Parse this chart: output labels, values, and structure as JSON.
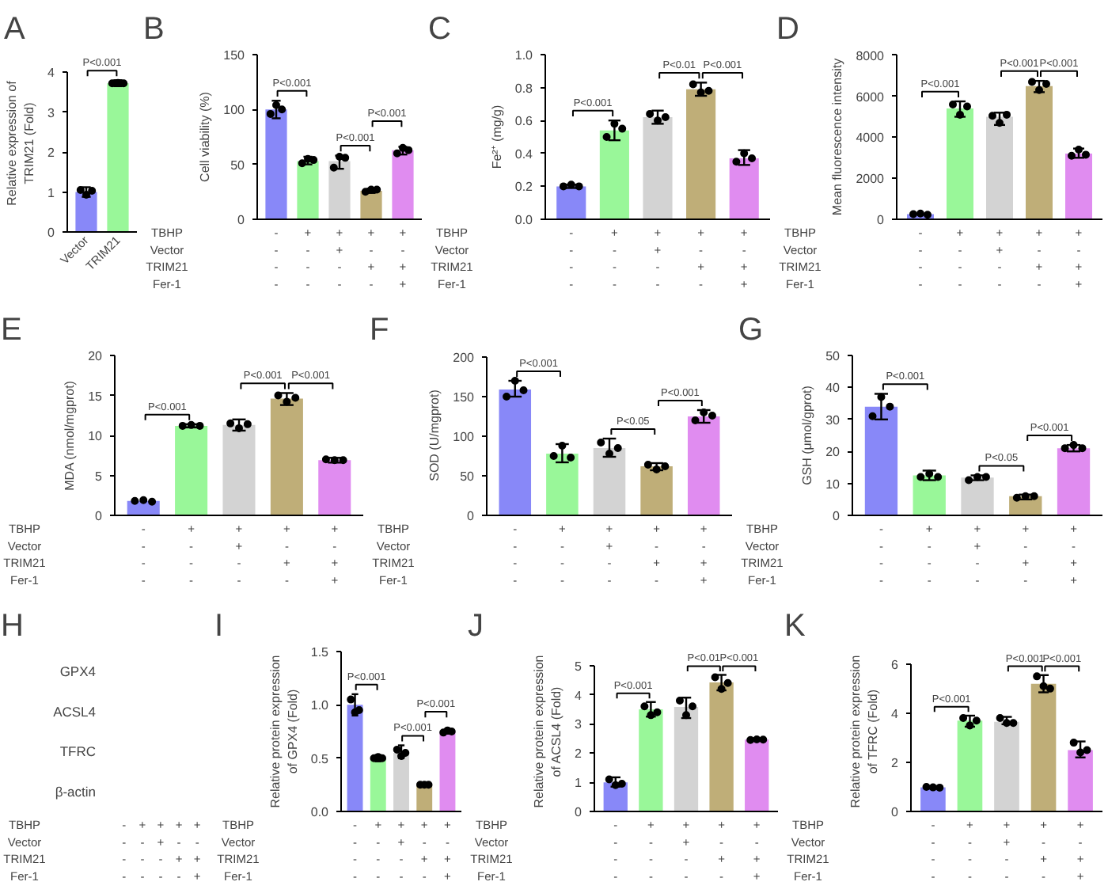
{
  "chart_data": [
    {
      "type": "bar",
      "title": "A",
      "ylabel": "Relative expression of\nTRIM21 (Fold)",
      "categories": [
        "Vector",
        "TRIM21"
      ],
      "ylim": [
        0,
        4
      ],
      "yticks": [
        0,
        1,
        2,
        3,
        4
      ],
      "marker": "circle",
      "annotations": [
        "P<0.001"
      ],
      "series": [
        {
          "type": "bar",
          "colors": [
            "#8888f8",
            "#99f799"
          ],
          "values": [
            1.0,
            3.72
          ],
          "errors": [
            [
              0.88,
              1.12
            ],
            [
              3.65,
              3.8
            ]
          ]
        },
        {
          "type": "scatter",
          "color": "#000000",
          "x": [
            "Vector",
            "Vector",
            "Vector",
            "TRIM21",
            "TRIM21",
            "TRIM21"
          ],
          "values": [
            1.05,
            0.93,
            1.03,
            3.72,
            3.73,
            3.72
          ]
        }
      ]
    },
    {
      "type": "bar",
      "title": "B",
      "ylabel": "Cell viability (%)",
      "xlabel": "TBHP\nVector\nTRIM21\nFer-1",
      "categories": [
        "-\n-\n-\n-",
        "+\n-\n-\n-",
        "+\n+\n-\n-",
        "+\n-\n+\n-",
        "+\n-\n+\n+"
      ],
      "ylim": [
        0,
        150
      ],
      "yticks": [
        0,
        50,
        100,
        150
      ],
      "marker": "circle",
      "annotations": [
        "P<0.001",
        "P<0.001",
        "P<0.001"
      ],
      "series": [
        {
          "type": "bar",
          "colors": [
            "#8888f8",
            "#99f799",
            "#d3d3d3",
            "#bfae78",
            "#e08cf0"
          ],
          "values": [
            100,
            53,
            53,
            26,
            63
          ],
          "errors": [
            [
              92,
              108
            ],
            [
              50,
              57
            ],
            [
              46,
              58
            ],
            [
              24,
              28
            ],
            [
              59,
              66
            ]
          ]
        },
        {
          "type": "scatter",
          "color": "#000000",
          "x": [
            "-\n-\n-\n-",
            "-\n-\n-\n-",
            "-\n-\n-\n-",
            "+\n-\n-\n-",
            "+\n-\n-\n-",
            "+\n-\n-\n-",
            "+\n+\n-\n-",
            "+\n+\n-\n-",
            "+\n+\n-\n-",
            "+\n-\n+\n-",
            "+\n-\n+\n-",
            "+\n-\n+\n-",
            "+\n-\n+\n+",
            "+\n-\n+\n+",
            "+\n-\n+\n+"
          ],
          "values": [
            96,
            104,
            100,
            51,
            55,
            54,
            47,
            57,
            56,
            25,
            27,
            27,
            60,
            65,
            63
          ]
        }
      ]
    },
    {
      "type": "bar",
      "title": "C",
      "ylabel": "Fe²⁺ (mg/g)",
      "xlabel": "TBHP\nVector\nTRIM21\nFer-1",
      "categories": [
        "-\n-\n-\n-",
        "+\n-\n-\n-",
        "+\n+\n-\n-",
        "+\n-\n+\n-",
        "+\n-\n+\n+"
      ],
      "ylim": [
        0,
        1.0
      ],
      "yticks": [
        {
          "value": 0,
          "label": "0.0"
        },
        {
          "value": 0.2,
          "label": "0.2"
        },
        {
          "value": 0.4,
          "label": "0.4"
        },
        {
          "value": 0.6,
          "label": "0.6"
        },
        {
          "value": 0.8,
          "label": "0.8"
        },
        {
          "value": 1.0,
          "label": "1.0"
        }
      ],
      "marker": "circle",
      "annotations": [
        "P<0.001",
        "P<0.01",
        "P<0.001"
      ],
      "series": [
        {
          "type": "bar",
          "colors": [
            "#8888f8",
            "#99f799",
            "#d3d3d3",
            "#bfae78",
            "#e08cf0"
          ],
          "values": [
            0.2,
            0.54,
            0.62,
            0.79,
            0.37
          ],
          "errors": [
            [
              0.19,
              0.21
            ],
            [
              0.48,
              0.6
            ],
            [
              0.58,
              0.66
            ],
            [
              0.75,
              0.83
            ],
            [
              0.33,
              0.42
            ]
          ]
        },
        {
          "type": "scatter",
          "color": "#000000",
          "x": [
            "-\n-\n-\n-",
            "-\n-\n-\n-",
            "-\n-\n-\n-",
            "+\n-\n-\n-",
            "+\n-\n-\n-",
            "+\n-\n-\n-",
            "+\n+\n-\n-",
            "+\n+\n-\n-",
            "+\n+\n-\n-",
            "+\n-\n+\n-",
            "+\n-\n+\n-",
            "+\n-\n+\n-",
            "+\n-\n+\n+",
            "+\n-\n+\n+",
            "+\n-\n+\n+"
          ],
          "values": [
            0.2,
            0.21,
            0.2,
            0.5,
            0.58,
            0.55,
            0.64,
            0.6,
            0.62,
            0.82,
            0.77,
            0.78,
            0.35,
            0.4,
            0.37
          ]
        }
      ]
    },
    {
      "type": "bar",
      "title": "D",
      "ylabel": "Mean fluorescence intensity",
      "xlabel": "TBHP\nVector\nTRIM21\nFer-1",
      "categories": [
        "-\n-\n-\n-",
        "+\n-\n-\n-",
        "+\n+\n-\n-",
        "+\n-\n+\n-",
        "+\n-\n+\n+"
      ],
      "ylim": [
        0,
        8000
      ],
      "yticks": [
        0,
        2000,
        4000,
        6000,
        8000
      ],
      "marker": "circle",
      "annotations": [
        "P<0.001",
        "P<0.001",
        "P<0.001"
      ],
      "series": [
        {
          "type": "bar",
          "colors": [
            "#8888f8",
            "#99f799",
            "#d3d3d3",
            "#bfae78",
            "#e08cf0"
          ],
          "values": [
            250,
            5400,
            5000,
            6500,
            3200
          ],
          "errors": [
            null,
            [
              5000,
              5750
            ],
            [
              4600,
              5200
            ],
            [
              6200,
              6750
            ],
            [
              3000,
              3450
            ]
          ]
        },
        {
          "type": "scatter",
          "color": "#000000",
          "x": [
            "-\n-\n-\n-",
            "-\n-\n-\n-",
            "-\n-\n-\n-",
            "+\n-\n-\n-",
            "+\n-\n-\n-",
            "+\n-\n-\n-",
            "+\n+\n-\n-",
            "+\n+\n-\n-",
            "+\n+\n-\n-",
            "+\n-\n+\n-",
            "+\n-\n+\n-",
            "+\n-\n+\n-",
            "+\n-\n+\n+",
            "+\n-\n+\n+",
            "+\n-\n+\n+"
          ],
          "values": [
            250,
            280,
            220,
            5600,
            5100,
            5500,
            5050,
            4700,
            5100,
            6700,
            6300,
            6600,
            3100,
            3400,
            3150
          ]
        }
      ]
    },
    {
      "type": "bar",
      "title": "E",
      "ylabel": "MDA (nmol/mgprot)",
      "xlabel": "TBHP\nVector\nTRIM21\nFer-1",
      "categories": [
        "-\n-\n-\n-",
        "+\n-\n-\n-",
        "+\n+\n-\n-",
        "+\n-\n+\n-",
        "+\n-\n+\n+"
      ],
      "ylim": [
        0,
        20
      ],
      "yticks": [
        0,
        5,
        10,
        15,
        20
      ],
      "marker": "circle",
      "annotations": [
        "P<0.001",
        "P<0.001",
        "P<0.001"
      ],
      "series": [
        {
          "type": "bar",
          "colors": [
            "#8888f8",
            "#99f799",
            "#d3d3d3",
            "#bfae78",
            "#e08cf0"
          ],
          "values": [
            1.8,
            11.2,
            11.3,
            14.6,
            6.9
          ],
          "errors": [
            null,
            [
              11.0,
              11.4
            ],
            [
              10.6,
              12.0
            ],
            [
              13.8,
              15.3
            ],
            [
              6.6,
              7.2
            ]
          ]
        },
        {
          "type": "scatter",
          "color": "#000000",
          "x": [
            "-\n-\n-\n-",
            "-\n-\n-\n-",
            "-\n-\n-\n-",
            "+\n-\n-\n-",
            "+\n-\n-\n-",
            "+\n-\n-\n-",
            "+\n+\n-\n-",
            "+\n+\n-\n-",
            "+\n+\n-\n-",
            "+\n-\n+\n-",
            "+\n-\n+\n-",
            "+\n-\n+\n-",
            "+\n-\n+\n+",
            "+\n-\n+\n+",
            "+\n-\n+\n+"
          ],
          "values": [
            1.8,
            1.9,
            1.7,
            11.2,
            11.3,
            11.2,
            11.5,
            10.9,
            11.4,
            15,
            14.2,
            14.7,
            7,
            6.9,
            6.9
          ]
        }
      ]
    },
    {
      "type": "bar",
      "title": "F",
      "ylabel": "SOD (U/mgprot)",
      "xlabel": "TBHP\nVector\nTRIM21\nFer-1",
      "categories": [
        "-\n-\n-\n-",
        "+\n-\n-\n-",
        "+\n+\n-\n-",
        "+\n-\n+\n-",
        "+\n-\n+\n+"
      ],
      "ylim": [
        0,
        200
      ],
      "yticks": [
        0,
        50,
        100,
        150,
        200
      ],
      "marker": "circle",
      "annotations": [
        "P<0.001",
        "P<0.05",
        "P<0.001"
      ],
      "series": [
        {
          "type": "bar",
          "colors": [
            "#8888f8",
            "#99f799",
            "#d3d3d3",
            "#bfae78",
            "#e08cf0"
          ],
          "values": [
            159,
            78,
            85,
            62,
            125
          ],
          "errors": [
            [
              150,
              170
            ],
            [
              67,
              90
            ],
            [
              74,
              97
            ],
            [
              57,
              66
            ],
            [
              117,
              133
            ]
          ]
        },
        {
          "type": "scatter",
          "color": "#000000",
          "x": [
            "-\n-\n-\n-",
            "-\n-\n-\n-",
            "-\n-\n-\n-",
            "+\n-\n-\n-",
            "+\n-\n-\n-",
            "+\n-\n-\n-",
            "+\n+\n-\n-",
            "+\n+\n-\n-",
            "+\n+\n-\n-",
            "+\n-\n+\n-",
            "+\n-\n+\n-",
            "+\n-\n+\n-",
            "+\n-\n+\n+",
            "+\n-\n+\n+",
            "+\n-\n+\n+"
          ],
          "values": [
            150,
            170,
            158,
            75,
            88,
            73,
            92,
            78,
            85,
            64,
            58,
            62,
            120,
            130,
            126
          ]
        }
      ]
    },
    {
      "type": "bar",
      "title": "G",
      "ylabel": "GSH (μmol/gprot)",
      "xlabel": "TBHP\nVector\nTRIM21\nFer-1",
      "categories": [
        "-\n-\n-\n-",
        "+\n-\n-\n-",
        "+\n+\n-\n-",
        "+\n-\n+\n-",
        "+\n-\n+\n+"
      ],
      "ylim": [
        0,
        50
      ],
      "yticks": [
        0,
        10,
        20,
        30,
        40,
        50
      ],
      "marker": "circle",
      "annotations": [
        "P<0.001",
        "P<0.05",
        "P<0.001"
      ],
      "series": [
        {
          "type": "bar",
          "colors": [
            "#8888f8",
            "#99f799",
            "#d3d3d3",
            "#bfae78",
            "#e08cf0"
          ],
          "values": [
            34,
            12.5,
            11.8,
            6,
            21
          ],
          "errors": [
            [
              30,
              38
            ],
            [
              11,
              14
            ],
            [
              11,
              12.5
            ],
            [
              5,
              6.5
            ],
            [
              20,
              22
            ]
          ]
        },
        {
          "type": "scatter",
          "color": "#000000",
          "x": [
            "-\n-\n-\n-",
            "-\n-\n-\n-",
            "-\n-\n-\n-",
            "+\n-\n-\n-",
            "+\n-\n-\n-",
            "+\n-\n-\n-",
            "+\n+\n-\n-",
            "+\n+\n-\n-",
            "+\n+\n-\n-",
            "+\n-\n+\n-",
            "+\n-\n+\n-",
            "+\n-\n+\n-",
            "+\n-\n+\n+",
            "+\n-\n+\n+",
            "+\n-\n+\n+"
          ],
          "values": [
            31,
            37,
            34,
            12,
            13,
            12,
            11,
            12,
            12,
            5.5,
            6,
            6,
            21,
            22,
            21
          ]
        }
      ]
    },
    {
      "type": "other",
      "title": "H",
      "xlabel": "TBHP\nVector\nTRIM21\nFer-1",
      "categories": [
        "-\n-\n-\n-",
        "+\n-\n-\n-",
        "+\n+\n-\n-",
        "+\n-\n+\n-",
        "+\n-\n+\n+"
      ],
      "y_categories": [
        "GPX4",
        "ACSL4",
        "TFRC",
        "β-actin"
      ]
    },
    {
      "type": "bar",
      "title": "I",
      "ylabel": "Relative protein expression\nof GPX4 (Fold)",
      "xlabel": "TBHP\nVector\nTRIM21\nFer-1",
      "categories": [
        "-\n-\n-\n-",
        "+\n-\n-\n-",
        "+\n+\n-\n-",
        "+\n-\n+\n-",
        "+\n-\n+\n+"
      ],
      "ylim": [
        0,
        1.5
      ],
      "yticks": [
        {
          "value": 0,
          "label": "0.0"
        },
        {
          "value": 0.5,
          "label": "0.5"
        },
        {
          "value": 1.0,
          "label": "1.0"
        },
        {
          "value": 1.5,
          "label": "1.5"
        }
      ],
      "marker": "circle",
      "annotations": [
        "P<0.001",
        "P<0.001",
        "P<0.001"
      ],
      "series": [
        {
          "type": "bar",
          "colors": [
            "#8888f8",
            "#99f799",
            "#d3d3d3",
            "#bfae78",
            "#e08cf0"
          ],
          "values": [
            1.0,
            0.5,
            0.55,
            0.25,
            0.75
          ],
          "errors": [
            [
              0.9,
              1.1
            ],
            [
              0.47,
              0.53
            ],
            [
              0.5,
              0.62
            ],
            [
              0.24,
              0.26
            ],
            [
              0.73,
              0.77
            ]
          ]
        },
        {
          "type": "scatter",
          "color": "#000000",
          "x": [
            "-\n-\n-\n-",
            "-\n-\n-\n-",
            "-\n-\n-\n-",
            "+\n-\n-\n-",
            "+\n-\n-\n-",
            "+\n-\n-\n-",
            "+\n+\n-\n-",
            "+\n+\n-\n-",
            "+\n+\n-\n-",
            "+\n-\n+\n-",
            "+\n-\n+\n-",
            "+\n-\n+\n-",
            "+\n-\n+\n+",
            "+\n-\n+\n+",
            "+\n-\n+\n+"
          ],
          "values": [
            1.05,
            0.93,
            0.95,
            0.5,
            0.51,
            0.5,
            0.58,
            0.52,
            0.55,
            0.25,
            0.25,
            0.25,
            0.74,
            0.76,
            0.75
          ]
        }
      ]
    },
    {
      "type": "bar",
      "title": "J",
      "ylabel": "Relative protein expression\nof ACSL4 (Fold)",
      "xlabel": "TBHP\nVector\nTRIM21\nFer-1",
      "categories": [
        "-\n-\n-\n-",
        "+\n-\n-\n-",
        "+\n+\n-\n-",
        "+\n-\n+\n-",
        "+\n-\n+\n+"
      ],
      "ylim": [
        0,
        5
      ],
      "yticks": [
        0,
        1,
        2,
        3,
        4,
        5
      ],
      "marker": "circle",
      "annotations": [
        "P<0.001",
        "P<0.01",
        "P<0.001"
      ],
      "series": [
        {
          "type": "bar",
          "colors": [
            "#8888f8",
            "#99f799",
            "#d3d3d3",
            "#bfae78",
            "#e08cf0"
          ],
          "values": [
            1.0,
            3.5,
            3.58,
            4.42,
            2.46
          ],
          "errors": [
            [
              0.85,
              1.17
            ],
            [
              3.25,
              3.75
            ],
            [
              3.2,
              3.9
            ],
            [
              4.15,
              4.68
            ],
            [
              2.42,
              2.5
            ]
          ]
        },
        {
          "type": "scatter",
          "color": "#000000",
          "x": [
            "-\n-\n-\n-",
            "-\n-\n-\n-",
            "-\n-\n-\n-",
            "+\n-\n-\n-",
            "+\n-\n-\n-",
            "+\n-\n-\n-",
            "+\n+\n-\n-",
            "+\n+\n-\n-",
            "+\n+\n-\n-",
            "+\n-\n+\n-",
            "+\n-\n+\n-",
            "+\n-\n+\n-",
            "+\n-\n+\n+",
            "+\n-\n+\n+",
            "+\n-\n+\n+"
          ],
          "values": [
            1.1,
            0.9,
            0.95,
            3.6,
            3.3,
            3.4,
            3.8,
            3.3,
            3.6,
            4.6,
            4.2,
            4.4,
            2.45,
            2.47,
            2.46
          ]
        }
      ]
    },
    {
      "type": "bar",
      "title": "K",
      "ylabel": "Relative protein expression\nof TFRC (Fold)",
      "xlabel": "TBHP\nVector\nTRIM21\nFer-1",
      "categories": [
        "-\n-\n-\n-",
        "+\n-\n-\n-",
        "+\n+\n-\n-",
        "+\n-\n+\n-",
        "+\n-\n+\n+"
      ],
      "ylim": [
        0,
        6
      ],
      "yticks": [
        0,
        2,
        4,
        6
      ],
      "marker": "circle",
      "annotations": [
        "P<0.001",
        "P<0.001",
        "P<0.001"
      ],
      "series": [
        {
          "type": "bar",
          "colors": [
            "#8888f8",
            "#99f799",
            "#d3d3d3",
            "#bfae78",
            "#e08cf0"
          ],
          "values": [
            0.98,
            3.7,
            3.65,
            5.2,
            2.5
          ],
          "errors": [
            [
              0.93,
              1.03
            ],
            [
              3.45,
              3.9
            ],
            [
              3.55,
              3.85
            ],
            [
              4.85,
              5.55
            ],
            [
              2.2,
              2.85
            ]
          ]
        },
        {
          "type": "scatter",
          "color": "#000000",
          "x": [
            "-\n-\n-\n-",
            "-\n-\n-\n-",
            "-\n-\n-\n-",
            "+\n-\n-\n-",
            "+\n-\n-\n-",
            "+\n-\n-\n-",
            "+\n+\n-\n-",
            "+\n+\n-\n-",
            "+\n+\n-\n-",
            "+\n-\n+\n-",
            "+\n-\n+\n-",
            "+\n-\n+\n-",
            "+\n-\n+\n+",
            "+\n-\n+\n+",
            "+\n-\n+\n+"
          ],
          "values": [
            1,
            0.98,
            0.97,
            3.8,
            3.5,
            3.7,
            3.8,
            3.6,
            3.6,
            5.5,
            5.1,
            5.0,
            2.8,
            2.4,
            2.5
          ]
        }
      ]
    }
  ]
}
